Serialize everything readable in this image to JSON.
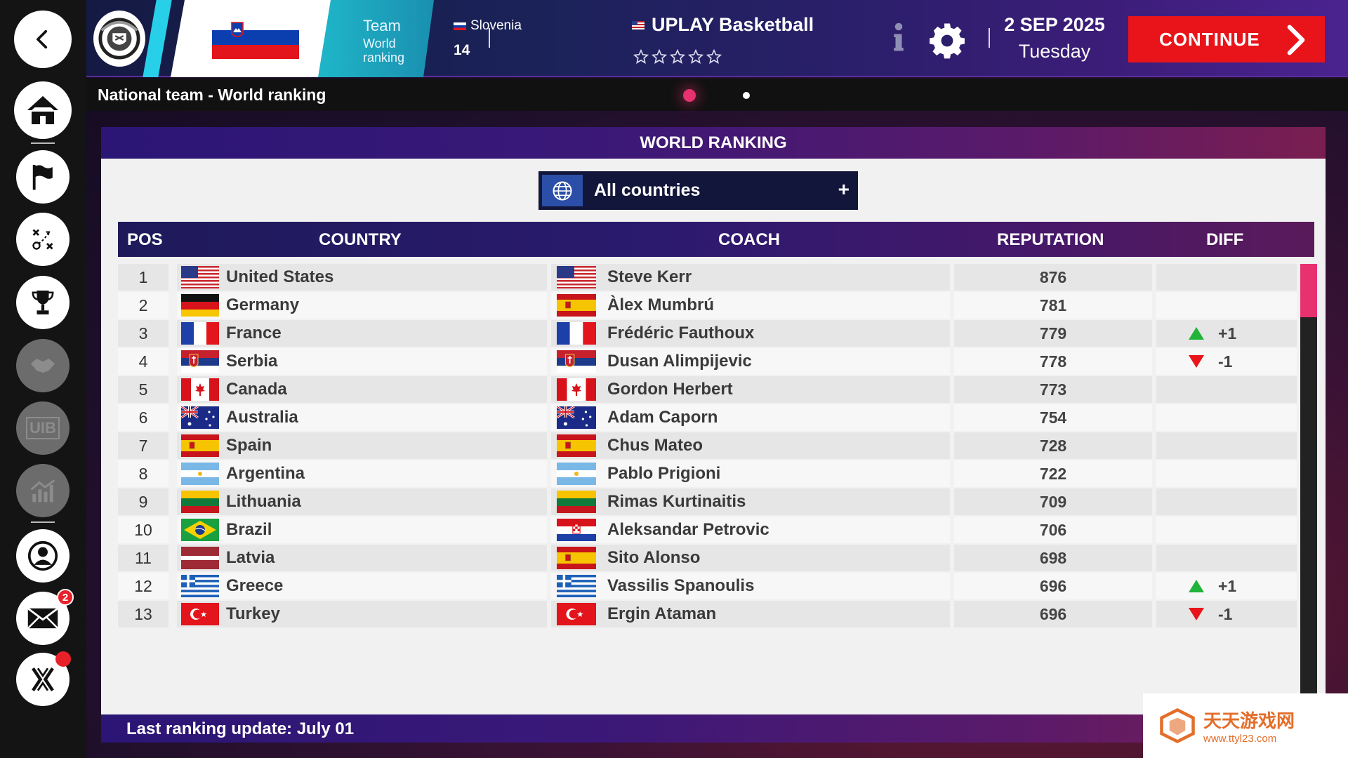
{
  "sidebar": {
    "items": [
      {
        "name": "back-icon"
      },
      {
        "name": "home-icon"
      },
      {
        "name": "flag-icon"
      },
      {
        "name": "tactics-icon"
      },
      {
        "name": "trophy-icon"
      },
      {
        "name": "handshake-icon"
      },
      {
        "name": "uib-icon",
        "label": "UIB"
      },
      {
        "name": "finance-icon"
      },
      {
        "name": "profile-icon"
      },
      {
        "name": "mail-icon",
        "badge": "2"
      },
      {
        "name": "x-logo-icon"
      }
    ]
  },
  "header": {
    "team_label": "Team",
    "ranking_label": "World ranking",
    "country": "Slovenia",
    "world_rank": "14",
    "league": "UPLAY Basketball",
    "league_stars": 5,
    "date": "2 SEP 2025",
    "day": "Tuesday",
    "continue_label": "CONTINUE"
  },
  "subheader": {
    "title": "National team - World ranking",
    "pages": 2,
    "active_page": 1
  },
  "panel": {
    "title": "WORLD RANKING",
    "filter_label": "All countries",
    "filter_add": "+",
    "columns": {
      "pos": "POS",
      "country": "COUNTRY",
      "coach": "COACH",
      "reputation": "REPUTATION",
      "diff": "DIFF"
    },
    "footer": "Last ranking update: July 01"
  },
  "rows": [
    {
      "pos": "1",
      "country": "United States",
      "country_flag": "us",
      "coach": "Steve Kerr",
      "coach_flag": "us",
      "reputation": "876",
      "diff": ""
    },
    {
      "pos": "2",
      "country": "Germany",
      "country_flag": "de",
      "coach": "Àlex Mumbrú",
      "coach_flag": "es",
      "reputation": "781",
      "diff": ""
    },
    {
      "pos": "3",
      "country": "France",
      "country_flag": "fr",
      "coach": "Frédéric Fauthoux",
      "coach_flag": "fr",
      "reputation": "779",
      "diff": "+1",
      "trend": "up"
    },
    {
      "pos": "4",
      "country": "Serbia",
      "country_flag": "rs",
      "coach": "Dusan Alimpijevic",
      "coach_flag": "rs",
      "reputation": "778",
      "diff": "-1",
      "trend": "down"
    },
    {
      "pos": "5",
      "country": "Canada",
      "country_flag": "ca",
      "coach": "Gordon Herbert",
      "coach_flag": "ca",
      "reputation": "773",
      "diff": ""
    },
    {
      "pos": "6",
      "country": "Australia",
      "country_flag": "au",
      "coach": "Adam Caporn",
      "coach_flag": "au",
      "reputation": "754",
      "diff": ""
    },
    {
      "pos": "7",
      "country": "Spain",
      "country_flag": "es",
      "coach": "Chus Mateo",
      "coach_flag": "es",
      "reputation": "728",
      "diff": ""
    },
    {
      "pos": "8",
      "country": "Argentina",
      "country_flag": "ar",
      "coach": "Pablo Prigioni",
      "coach_flag": "ar",
      "reputation": "722",
      "diff": ""
    },
    {
      "pos": "9",
      "country": "Lithuania",
      "country_flag": "lt",
      "coach": "Rimas Kurtinaitis",
      "coach_flag": "lt",
      "reputation": "709",
      "diff": ""
    },
    {
      "pos": "10",
      "country": "Brazil",
      "country_flag": "br",
      "coach": "Aleksandar Petrovic",
      "coach_flag": "hr",
      "reputation": "706",
      "diff": ""
    },
    {
      "pos": "11",
      "country": "Latvia",
      "country_flag": "lv",
      "coach": "Sito Alonso",
      "coach_flag": "es",
      "reputation": "698",
      "diff": ""
    },
    {
      "pos": "12",
      "country": "Greece",
      "country_flag": "gr",
      "coach": "Vassilis Spanoulis",
      "coach_flag": "gr",
      "reputation": "696",
      "diff": "+1",
      "trend": "up"
    },
    {
      "pos": "13",
      "country": "Turkey",
      "country_flag": "tr",
      "coach": "Ergin Ataman",
      "coach_flag": "tr",
      "reputation": "696",
      "diff": "-1",
      "trend": "down"
    }
  ],
  "colors": {
    "accent": "#e9141a",
    "scroll_thumb": "#e8316f",
    "up": "#22b33a",
    "down": "#e8141a"
  },
  "watermark": {
    "line1": "天天游戏网",
    "line2": "www.ttyl23.com"
  }
}
